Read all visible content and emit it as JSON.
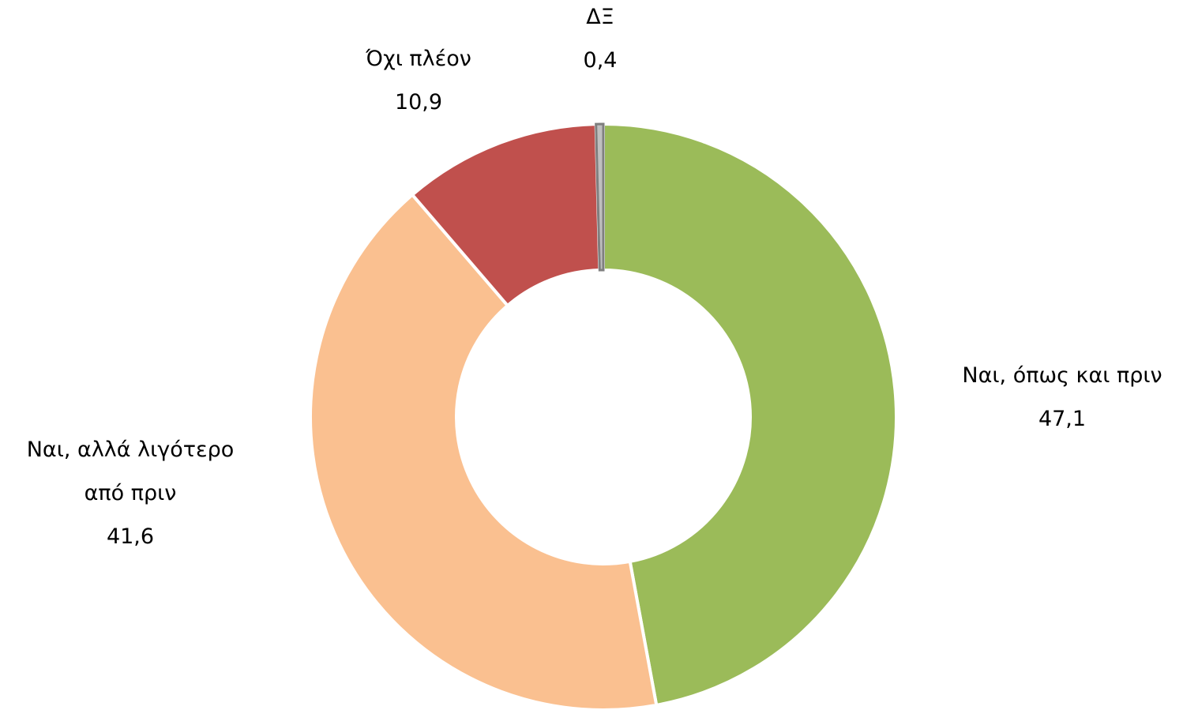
{
  "chart_data": {
    "type": "donut",
    "categories": [
      "Ναι, όπως και πριν",
      "Ναι, αλλά λιγότερο από πριν",
      "Όχι πλέον",
      "ΔΞ"
    ],
    "values": [
      47.1,
      41.6,
      10.9,
      0.4
    ],
    "value_labels": [
      "47,1",
      "41,6",
      "10,9",
      "0,4"
    ],
    "colors": [
      "#9bbb59",
      "#fac090",
      "#c0504d",
      "#bfbfbf"
    ]
  }
}
